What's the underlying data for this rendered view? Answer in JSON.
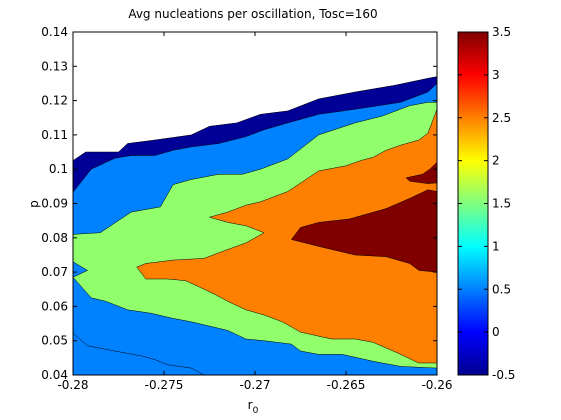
{
  "chart_data": {
    "type": "heatmap",
    "subtype": "filled-contour",
    "title": "Avg nucleations per oscillation, Tosc=160",
    "xlabel": "r",
    "xlabel_sub": "0",
    "ylabel": "p",
    "xlim": [
      -0.28,
      -0.26
    ],
    "ylim": [
      0.04,
      0.14
    ],
    "x_ticks": [
      -0.28,
      -0.275,
      -0.27,
      -0.265,
      -0.26
    ],
    "x_tick_labels": [
      "-0.28",
      "-0.275",
      "-0.27",
      "-0.265",
      "-0.26"
    ],
    "y_ticks": [
      0.04,
      0.05,
      0.06,
      0.07,
      0.08,
      0.09,
      0.1,
      0.11,
      0.12,
      0.13,
      0.14
    ],
    "y_tick_labels": [
      "0.04",
      "0.05",
      "0.06",
      "0.07",
      "0.08",
      "0.09",
      "0.1",
      "0.11",
      "0.12",
      "0.13",
      "0.14"
    ],
    "colorbar": {
      "range": [
        -0.5,
        3.5
      ],
      "ticks": [
        -0.5,
        0,
        0.5,
        1,
        1.5,
        2,
        2.5,
        3,
        3.5
      ],
      "tick_labels": [
        "-0.5",
        "0",
        "0.5",
        "1",
        "1.5",
        "2",
        "2.5",
        "3",
        "3.5"
      ],
      "colormap": "jet"
    },
    "grid": false,
    "levels": [
      {
        "level": 0,
        "color": "#000096",
        "points": [
          [
            -0.28,
            0.0933
          ],
          [
            -0.28,
            0.1025
          ],
          [
            -0.2793,
            0.105
          ],
          [
            -0.2775,
            0.105
          ],
          [
            -0.277,
            0.1075
          ],
          [
            -0.2755,
            0.1085
          ],
          [
            -0.2735,
            0.11
          ],
          [
            -0.2725,
            0.1125
          ],
          [
            -0.271,
            0.1135
          ],
          [
            -0.2697,
            0.116
          ],
          [
            -0.2682,
            0.117
          ],
          [
            -0.2665,
            0.1205
          ],
          [
            -0.2645,
            0.1225
          ],
          [
            -0.2623,
            0.1245
          ],
          [
            -0.2605,
            0.1265
          ],
          [
            -0.26,
            0.127
          ],
          [
            -0.26,
            0.04
          ],
          [
            -0.28,
            0.04
          ]
        ]
      },
      {
        "level": 0.5,
        "color": "#0081FF",
        "points": [
          [
            -0.28,
            0.0933
          ],
          [
            -0.279,
            0.1
          ],
          [
            -0.2777,
            0.1032
          ],
          [
            -0.2768,
            0.104
          ],
          [
            -0.2755,
            0.104
          ],
          [
            -0.2745,
            0.1055
          ],
          [
            -0.2735,
            0.1065
          ],
          [
            -0.272,
            0.1075
          ],
          [
            -0.2705,
            0.1095
          ],
          [
            -0.2695,
            0.1115
          ],
          [
            -0.2682,
            0.1135
          ],
          [
            -0.2665,
            0.116
          ],
          [
            -0.2645,
            0.1175
          ],
          [
            -0.262,
            0.1195
          ],
          [
            -0.2605,
            0.1225
          ],
          [
            -0.26,
            0.125
          ],
          [
            -0.26,
            0.04
          ],
          [
            -0.28,
            0.04
          ]
        ]
      },
      {
        "level": 1,
        "color": "#91FF6B",
        "points": [
          [
            -0.28,
            0.081
          ],
          [
            -0.2785,
            0.0815
          ],
          [
            -0.2768,
            0.0875
          ],
          [
            -0.2752,
            0.089
          ],
          [
            -0.2745,
            0.0955
          ],
          [
            -0.2735,
            0.097
          ],
          [
            -0.272,
            0.0985
          ],
          [
            -0.2707,
            0.0985
          ],
          [
            -0.2697,
            0.1
          ],
          [
            -0.2682,
            0.103
          ],
          [
            -0.2665,
            0.11
          ],
          [
            -0.2645,
            0.1135
          ],
          [
            -0.263,
            0.1155
          ],
          [
            -0.2615,
            0.1185
          ],
          [
            -0.2605,
            0.1195
          ],
          [
            -0.26,
            0.1195
          ],
          [
            -0.26,
            0.042
          ],
          [
            -0.262,
            0.0425
          ],
          [
            -0.2635,
            0.044
          ],
          [
            -0.2652,
            0.046
          ],
          [
            -0.2665,
            0.046
          ],
          [
            -0.2675,
            0.047
          ],
          [
            -0.268,
            0.049
          ],
          [
            -0.2695,
            0.05
          ],
          [
            -0.2705,
            0.0505
          ],
          [
            -0.2715,
            0.053
          ],
          [
            -0.2735,
            0.0555
          ],
          [
            -0.2745,
            0.0565
          ],
          [
            -0.2757,
            0.058
          ],
          [
            -0.277,
            0.059
          ],
          [
            -0.2782,
            0.0615
          ],
          [
            -0.279,
            0.0625
          ],
          [
            -0.28,
            0.0685
          ],
          [
            -0.2792,
            0.0705
          ],
          [
            -0.28,
            0.073
          ]
        ]
      },
      {
        "level": 1,
        "color": "#0081FF",
        "points": [
          [
            -0.28,
            0.04
          ],
          [
            -0.2728,
            0.04
          ],
          [
            -0.2735,
            0.042
          ],
          [
            -0.2748,
            0.043
          ],
          [
            -0.2755,
            0.0445
          ],
          [
            -0.2762,
            0.0455
          ],
          [
            -0.2782,
            0.0475
          ],
          [
            -0.2792,
            0.0485
          ],
          [
            -0.28,
            0.0522
          ]
        ]
      },
      {
        "level": 2,
        "color": "#FF7F00",
        "points": [
          [
            -0.2765,
            0.0715
          ],
          [
            -0.276,
            0.0725
          ],
          [
            -0.2745,
            0.0735
          ],
          [
            -0.2728,
            0.074
          ],
          [
            -0.2718,
            0.076
          ],
          [
            -0.2705,
            0.0785
          ],
          [
            -0.2695,
            0.0815
          ],
          [
            -0.2705,
            0.0835
          ],
          [
            -0.2715,
            0.0845
          ],
          [
            -0.2725,
            0.086
          ],
          [
            -0.2715,
            0.0875
          ],
          [
            -0.2705,
            0.0895
          ],
          [
            -0.2697,
            0.0905
          ],
          [
            -0.2682,
            0.0935
          ],
          [
            -0.2665,
            0.0995
          ],
          [
            -0.265,
            0.101
          ],
          [
            -0.2642,
            0.1025
          ],
          [
            -0.2635,
            0.1035
          ],
          [
            -0.2628,
            0.1055
          ],
          [
            -0.262,
            0.107
          ],
          [
            -0.261,
            0.1085
          ],
          [
            -0.2605,
            0.1105
          ],
          [
            -0.26,
            0.1175
          ],
          [
            -0.26,
            0.0435
          ],
          [
            -0.261,
            0.0435
          ],
          [
            -0.2622,
            0.0465
          ],
          [
            -0.2635,
            0.0495
          ],
          [
            -0.2645,
            0.0505
          ],
          [
            -0.2658,
            0.0505
          ],
          [
            -0.2675,
            0.0525
          ],
          [
            -0.2685,
            0.0555
          ],
          [
            -0.2695,
            0.0575
          ],
          [
            -0.2705,
            0.059
          ],
          [
            -0.2715,
            0.0615
          ],
          [
            -0.2722,
            0.0635
          ],
          [
            -0.273,
            0.0655
          ],
          [
            -0.2738,
            0.0675
          ],
          [
            -0.2748,
            0.068
          ],
          [
            -0.276,
            0.068
          ]
        ]
      },
      {
        "level": 3,
        "color": "#800000",
        "points": [
          [
            -0.268,
            0.0795
          ],
          [
            -0.2665,
            0.0775
          ],
          [
            -0.2645,
            0.075
          ],
          [
            -0.2628,
            0.0745
          ],
          [
            -0.2615,
            0.0725
          ],
          [
            -0.261,
            0.0705
          ],
          [
            -0.26,
            0.07
          ],
          [
            -0.26,
            0.0935
          ],
          [
            -0.2605,
            0.094
          ],
          [
            -0.2615,
            0.0915
          ],
          [
            -0.2628,
            0.0885
          ],
          [
            -0.2648,
            0.0855
          ],
          [
            -0.2665,
            0.0845
          ],
          [
            -0.2675,
            0.083
          ]
        ]
      },
      {
        "level": 3,
        "color": "#800000",
        "points": [
          [
            -0.2617,
            0.0975
          ],
          [
            -0.2608,
            0.0985
          ],
          [
            -0.2604,
            0.1
          ],
          [
            -0.26,
            0.102
          ],
          [
            -0.26,
            0.096
          ],
          [
            -0.2605,
            0.0958
          ],
          [
            -0.2615,
            0.0965
          ]
        ]
      }
    ]
  }
}
